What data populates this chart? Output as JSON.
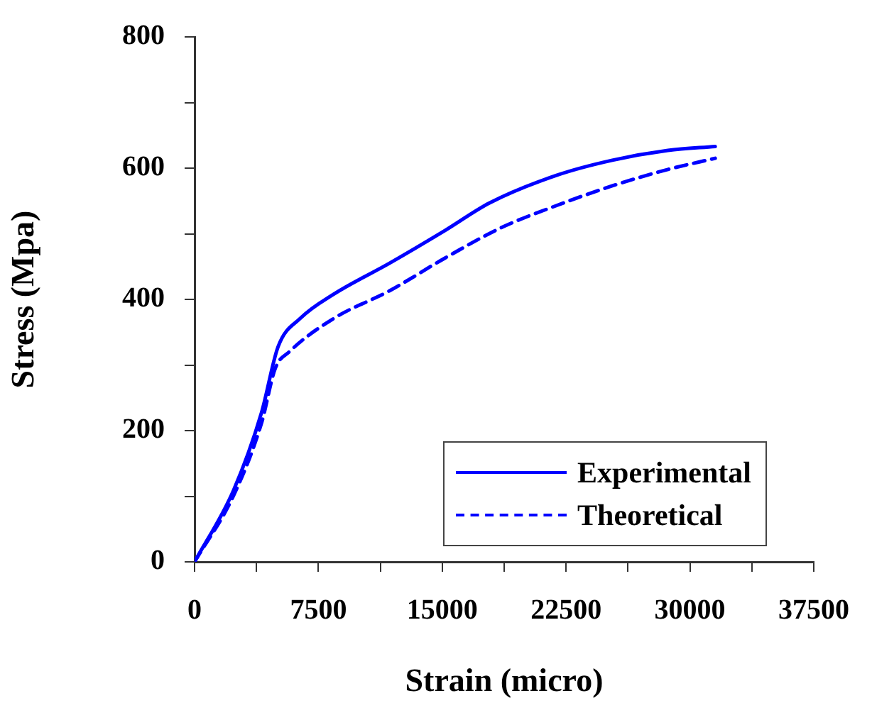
{
  "chart_data": {
    "type": "line",
    "xlabel": "Strain (micro)",
    "ylabel": "Stress (Mpa)",
    "xlim": [
      0,
      37500
    ],
    "xticks": [
      0,
      {
        "value": 3750,
        "label": null
      },
      7500,
      {
        "value": 11250,
        "label": null
      },
      15000,
      {
        "value": 18750,
        "label": null
      },
      22500,
      {
        "value": 26250,
        "label": null
      },
      30000,
      {
        "value": 33750,
        "label": null
      },
      37500
    ],
    "ylim": [
      0,
      800
    ],
    "yticks": [
      0,
      {
        "value": 100,
        "label": null
      },
      200,
      {
        "value": 300,
        "label": null
      },
      400,
      {
        "value": 500,
        "label": null
      },
      600,
      {
        "value": 700,
        "label": null
      },
      800
    ],
    "grid": false,
    "legend": "bottom right",
    "marker": "none",
    "series": [
      {
        "name": "Experimental",
        "color": "#0000ff",
        "line_style": "solid",
        "x": [
          0,
          2360,
          4050,
          5060,
          6400,
          8430,
          11800,
          15170,
          17870,
          21920,
          25300,
          28670,
          31530
        ],
        "values": [
          0,
          109,
          227,
          328,
          371,
          408,
          455,
          505,
          547,
          589,
          612,
          627,
          633
        ]
      },
      {
        "name": "Theoretical",
        "color": "#0000ff",
        "line_style": "dashed",
        "x": [
          0,
          2360,
          4050,
          4890,
          5730,
          8430,
          11800,
          15170,
          18550,
          21920,
          25300,
          28670,
          31530
        ],
        "values": [
          0,
          101,
          211,
          295,
          320,
          371,
          413,
          463,
          509,
          543,
          573,
          598,
          615
        ]
      }
    ]
  }
}
